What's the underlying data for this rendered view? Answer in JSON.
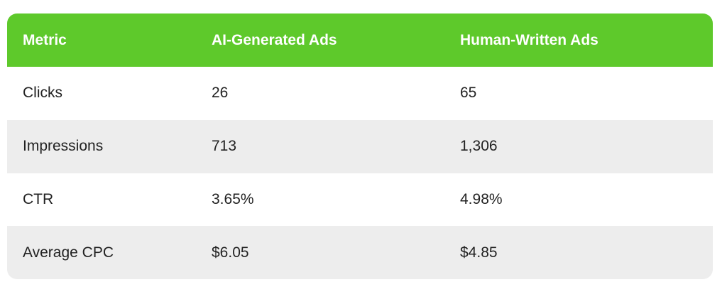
{
  "colors": {
    "header_bg": "#5ec92b",
    "header_text": "#ffffff",
    "row_alt_bg": "#ededed",
    "row_bg": "#ffffff",
    "text": "#222222"
  },
  "table": {
    "headers": [
      "Metric",
      "AI-Generated Ads",
      "Human-Written Ads"
    ],
    "rows": [
      [
        "Clicks",
        "26",
        "65"
      ],
      [
        "Impressions",
        "713",
        "1,306"
      ],
      [
        "CTR",
        "3.65%",
        "4.98%"
      ],
      [
        "Average CPC",
        "$6.05",
        "$4.85"
      ]
    ]
  }
}
